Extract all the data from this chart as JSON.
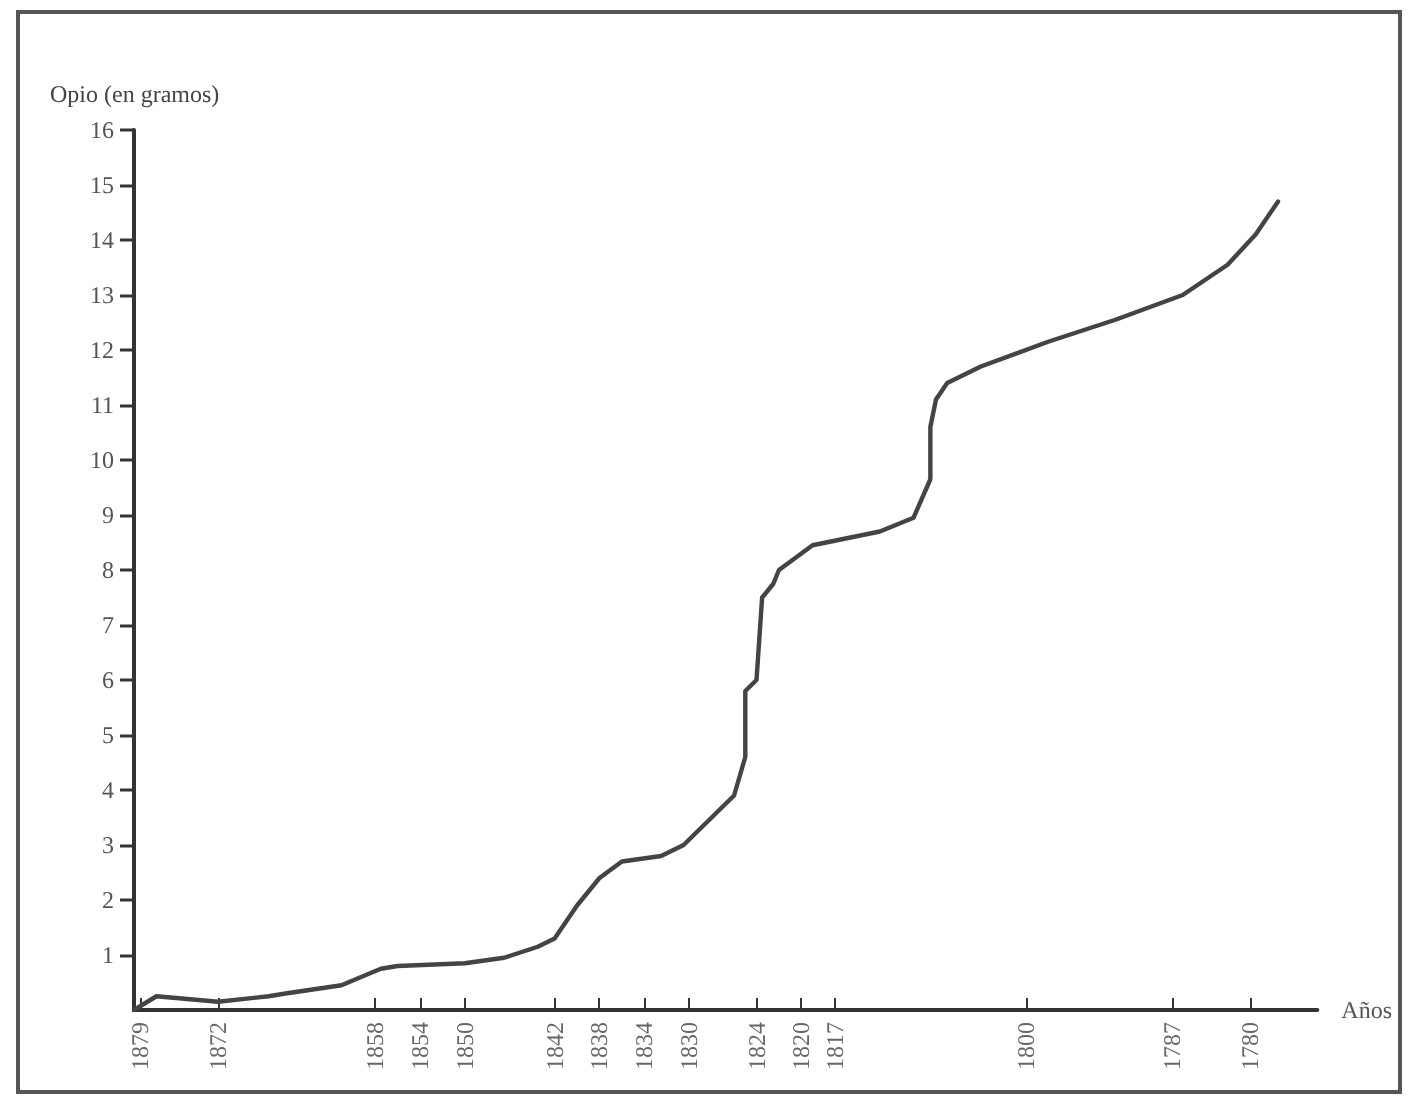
{
  "chart_data": {
    "type": "line",
    "xlabel": "Años",
    "ylabel": "Opio (en gramos)",
    "xlim": [
      1879.5,
      1774
    ],
    "ylim": [
      0,
      16
    ],
    "xticks": [
      1879,
      1872,
      1858,
      1854,
      1850,
      1842,
      1838,
      1834,
      1830,
      1824,
      1820,
      1817,
      1800,
      1787,
      1780
    ],
    "yticks": [
      1,
      2,
      3,
      4,
      5,
      6,
      7,
      8,
      9,
      10,
      11,
      12,
      13,
      14,
      15,
      16
    ],
    "marker": "none",
    "line_style": "solid",
    "series": [
      {
        "color": "#444444",
        "x": [
          1879.5,
          1877.5,
          1872,
          1867.5,
          1866,
          1861,
          1857.5,
          1856,
          1850,
          1846.5,
          1843.5,
          1842,
          1840,
          1838,
          1836,
          1832.5,
          1830.5,
          1828,
          1826,
          1825,
          1825,
          1824,
          1823.5,
          1822.5,
          1822,
          1819,
          1813,
          1810,
          1808.5,
          1808.5,
          1808,
          1807,
          1804,
          1798,
          1792,
          1786,
          1782,
          1779.5,
          1777.5
        ],
        "values": [
          0,
          0.25,
          0.15,
          0.25,
          0.3,
          0.45,
          0.75,
          0.8,
          0.85,
          0.95,
          1.15,
          1.3,
          1.9,
          2.4,
          2.7,
          2.8,
          3,
          3.5,
          3.9,
          4.6,
          5.8,
          6,
          7.5,
          7.75,
          8,
          8.45,
          8.7,
          8.95,
          9.65,
          10.6,
          11.1,
          11.4,
          11.7,
          12.15,
          12.55,
          13,
          13.55,
          14.1,
          14.7
        ]
      }
    ]
  }
}
